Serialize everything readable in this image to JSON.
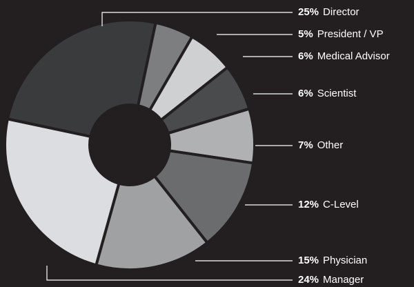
{
  "chart_data": {
    "type": "donut",
    "categories": [
      "Director",
      "President / VP",
      "Medical Advisor",
      "Scientist",
      "Other",
      "C-Level",
      "Physician",
      "Manager"
    ],
    "values": [
      25,
      5,
      6,
      6,
      7,
      12,
      15,
      24
    ],
    "value_labels": [
      "25%",
      "5%",
      "6%",
      "6%",
      "7%",
      "12%",
      "15%",
      "24%"
    ],
    "colors": [
      "#3a3b3d",
      "#7d7e80",
      "#cfd0d2",
      "#4a4b4d",
      "#b0b1b3",
      "#6b6c6e",
      "#a0a1a3",
      "#dcdde0"
    ]
  }
}
